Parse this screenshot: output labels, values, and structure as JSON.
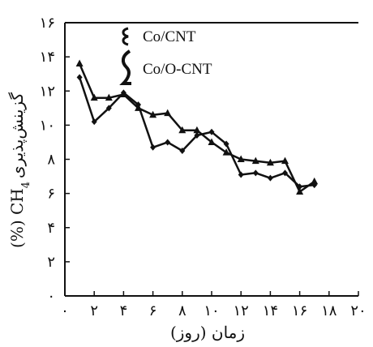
{
  "chart_data": {
    "type": "line",
    "xlabel": "زمان (روز)",
    "ylabel": "گزینش‌پذیری CH4 (%)",
    "ylabel_parts": {
      "prefix": "(%) CH",
      "subscript": "4",
      "suffix": "گزینش‌پذیری"
    },
    "xlim": [
      0,
      20
    ],
    "ylim": [
      0,
      16
    ],
    "x_ticks": [
      {
        "value": 0,
        "label": "۰"
      },
      {
        "value": 2,
        "label": "۲"
      },
      {
        "value": 4,
        "label": "۴"
      },
      {
        "value": 6,
        "label": "۶"
      },
      {
        "value": 8,
        "label": "۸"
      },
      {
        "value": 10,
        "label": "۱۰"
      },
      {
        "value": 12,
        "label": "۱۲"
      },
      {
        "value": 14,
        "label": "۱۴"
      },
      {
        "value": 16,
        "label": "۱۶"
      },
      {
        "value": 18,
        "label": "۱۸"
      },
      {
        "value": 20,
        "label": "۲۰"
      }
    ],
    "y_ticks": [
      {
        "value": 0,
        "label": "۰"
      },
      {
        "value": 2,
        "label": "۲"
      },
      {
        "value": 4,
        "label": "۴"
      },
      {
        "value": 6,
        "label": "۶"
      },
      {
        "value": 8,
        "label": "۸"
      },
      {
        "value": 10,
        "label": "۱۰"
      },
      {
        "value": 12,
        "label": "۱۲"
      },
      {
        "value": 14,
        "label": "۱۴"
      },
      {
        "value": 16,
        "label": "۱۶"
      }
    ],
    "grid": false,
    "legend_position": "top-left",
    "series": [
      {
        "name": "Co/CNT",
        "marker": "diamond",
        "color": "#111111",
        "x": [
          1,
          2,
          3,
          4,
          5,
          6,
          7,
          8,
          9,
          10,
          11,
          12,
          13,
          14,
          15,
          16,
          17
        ],
        "y": [
          12.8,
          10.2,
          11.0,
          11.9,
          11.2,
          8.7,
          9.0,
          8.5,
          9.4,
          9.6,
          8.9,
          7.1,
          7.2,
          6.9,
          7.2,
          6.4,
          6.5
        ]
      },
      {
        "name": "Co/O-CNT",
        "marker": "triangle",
        "color": "#111111",
        "x": [
          1,
          2,
          3,
          4,
          5,
          6,
          7,
          8,
          9,
          10,
          11,
          12,
          13,
          14,
          15,
          16,
          17
        ],
        "y": [
          13.6,
          11.6,
          11.6,
          11.8,
          11.0,
          10.6,
          10.7,
          9.7,
          9.7,
          9.0,
          8.4,
          8.0,
          7.9,
          7.8,
          7.9,
          6.1,
          6.7
        ]
      }
    ]
  }
}
